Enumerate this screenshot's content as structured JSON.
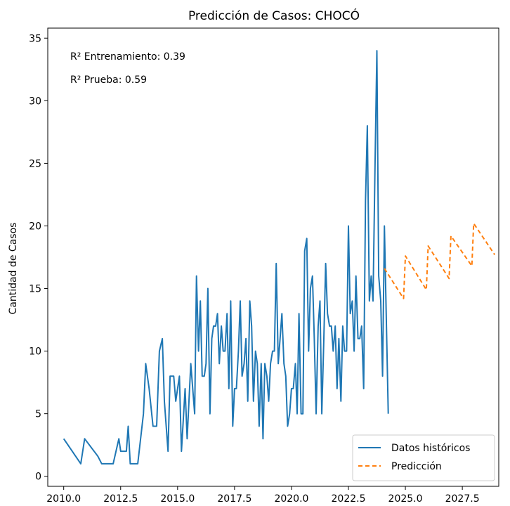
{
  "chart_data": {
    "type": "line",
    "title": "Predicción de Casos: CHOCÓ",
    "xlabel": "",
    "ylabel": "Cantidad de Casos",
    "xlim": [
      2009.3,
      2029.1
    ],
    "ylim": [
      -0.8,
      35.8
    ],
    "x_ticks": [
      2010.0,
      2012.5,
      2015.0,
      2017.5,
      2020.0,
      2022.5,
      2025.0,
      2027.5
    ],
    "x_tick_labels": [
      "2010.0",
      "2012.5",
      "2015.0",
      "2017.5",
      "2020.0",
      "2022.5",
      "2025.0",
      "2027.5"
    ],
    "y_ticks": [
      0,
      5,
      10,
      15,
      20,
      25,
      30,
      35
    ],
    "y_tick_labels": [
      "0",
      "5",
      "10",
      "15",
      "20",
      "25",
      "30",
      "35"
    ],
    "annotations": [
      "R² Entrenamiento: 0.39",
      "R² Prueba: 0.59"
    ],
    "legend_position": "bottom-right",
    "series": [
      {
        "name": "Datos históricos",
        "color": "#1f77b4",
        "style": "solid",
        "points": [
          [
            2010.0,
            3
          ],
          [
            2010.75,
            1
          ],
          [
            2010.92,
            3
          ],
          [
            2011.5,
            1.6
          ],
          [
            2011.67,
            1
          ],
          [
            2012.17,
            1
          ],
          [
            2012.42,
            3
          ],
          [
            2012.5,
            2
          ],
          [
            2012.75,
            2
          ],
          [
            2012.83,
            4
          ],
          [
            2012.92,
            1
          ],
          [
            2013.25,
            1
          ],
          [
            2013.5,
            5
          ],
          [
            2013.6,
            9
          ],
          [
            2013.75,
            7
          ],
          [
            2013.92,
            4
          ],
          [
            2014.08,
            4
          ],
          [
            2014.2,
            10
          ],
          [
            2014.33,
            11
          ],
          [
            2014.42,
            6
          ],
          [
            2014.58,
            2
          ],
          [
            2014.67,
            8
          ],
          [
            2014.83,
            8
          ],
          [
            2014.92,
            6
          ],
          [
            2015.08,
            8
          ],
          [
            2015.17,
            2
          ],
          [
            2015.33,
            7
          ],
          [
            2015.42,
            3
          ],
          [
            2015.58,
            9
          ],
          [
            2015.75,
            5
          ],
          [
            2015.83,
            16
          ],
          [
            2015.92,
            10
          ],
          [
            2016.0,
            14
          ],
          [
            2016.08,
            8
          ],
          [
            2016.17,
            8
          ],
          [
            2016.25,
            9
          ],
          [
            2016.33,
            15
          ],
          [
            2016.42,
            5
          ],
          [
            2016.5,
            11
          ],
          [
            2016.58,
            12
          ],
          [
            2016.67,
            12
          ],
          [
            2016.75,
            13
          ],
          [
            2016.83,
            9
          ],
          [
            2016.92,
            12
          ],
          [
            2017.0,
            10
          ],
          [
            2017.08,
            10
          ],
          [
            2017.17,
            13
          ],
          [
            2017.25,
            7
          ],
          [
            2017.33,
            14
          ],
          [
            2017.42,
            4
          ],
          [
            2017.5,
            7
          ],
          [
            2017.58,
            7
          ],
          [
            2017.67,
            10
          ],
          [
            2017.75,
            14
          ],
          [
            2017.83,
            8
          ],
          [
            2017.92,
            9
          ],
          [
            2018.0,
            11
          ],
          [
            2018.08,
            6
          ],
          [
            2018.17,
            14
          ],
          [
            2018.25,
            12
          ],
          [
            2018.33,
            6
          ],
          [
            2018.42,
            10
          ],
          [
            2018.5,
            9
          ],
          [
            2018.58,
            4
          ],
          [
            2018.67,
            9
          ],
          [
            2018.75,
            3
          ],
          [
            2018.83,
            9
          ],
          [
            2018.92,
            8
          ],
          [
            2019.0,
            6
          ],
          [
            2019.08,
            9
          ],
          [
            2019.17,
            10
          ],
          [
            2019.25,
            10
          ],
          [
            2019.33,
            17
          ],
          [
            2019.42,
            9
          ],
          [
            2019.5,
            11
          ],
          [
            2019.58,
            13
          ],
          [
            2019.67,
            9
          ],
          [
            2019.75,
            8
          ],
          [
            2019.83,
            4
          ],
          [
            2019.92,
            5
          ],
          [
            2020.0,
            7
          ],
          [
            2020.08,
            7
          ],
          [
            2020.17,
            9
          ],
          [
            2020.25,
            5
          ],
          [
            2020.33,
            13
          ],
          [
            2020.42,
            5
          ],
          [
            2020.5,
            5
          ],
          [
            2020.58,
            18
          ],
          [
            2020.67,
            19
          ],
          [
            2020.75,
            10
          ],
          [
            2020.83,
            15
          ],
          [
            2020.92,
            16
          ],
          [
            2021.0,
            11
          ],
          [
            2021.08,
            5
          ],
          [
            2021.17,
            12
          ],
          [
            2021.25,
            14
          ],
          [
            2021.33,
            5
          ],
          [
            2021.42,
            11
          ],
          [
            2021.5,
            17
          ],
          [
            2021.58,
            13
          ],
          [
            2021.67,
            12
          ],
          [
            2021.75,
            12
          ],
          [
            2021.83,
            10
          ],
          [
            2021.92,
            12
          ],
          [
            2022.0,
            7
          ],
          [
            2022.08,
            11
          ],
          [
            2022.17,
            6
          ],
          [
            2022.25,
            12
          ],
          [
            2022.33,
            10
          ],
          [
            2022.42,
            10
          ],
          [
            2022.5,
            20
          ],
          [
            2022.58,
            13
          ],
          [
            2022.67,
            14
          ],
          [
            2022.75,
            10
          ],
          [
            2022.83,
            16
          ],
          [
            2022.92,
            11
          ],
          [
            2023.0,
            11
          ],
          [
            2023.08,
            12
          ],
          [
            2023.17,
            7
          ],
          [
            2023.25,
            22
          ],
          [
            2023.33,
            28
          ],
          [
            2023.42,
            14
          ],
          [
            2023.5,
            16
          ],
          [
            2023.58,
            14
          ],
          [
            2023.67,
            25
          ],
          [
            2023.75,
            34
          ],
          [
            2023.83,
            16
          ],
          [
            2023.92,
            14
          ],
          [
            2024.0,
            8
          ],
          [
            2024.08,
            20
          ],
          [
            2024.25,
            5
          ]
        ]
      },
      {
        "name": "Predicción",
        "color": "#ff7f0e",
        "style": "dashed",
        "points": [
          [
            2024.08,
            16.6
          ],
          [
            2024.92,
            14.2
          ],
          [
            2025.0,
            17.6
          ],
          [
            2025.92,
            14.9
          ],
          [
            2026.0,
            18.4
          ],
          [
            2026.92,
            15.8
          ],
          [
            2027.0,
            19.2
          ],
          [
            2027.92,
            16.8
          ],
          [
            2028.0,
            20.2
          ],
          [
            2028.92,
            17.7
          ]
        ]
      }
    ]
  }
}
